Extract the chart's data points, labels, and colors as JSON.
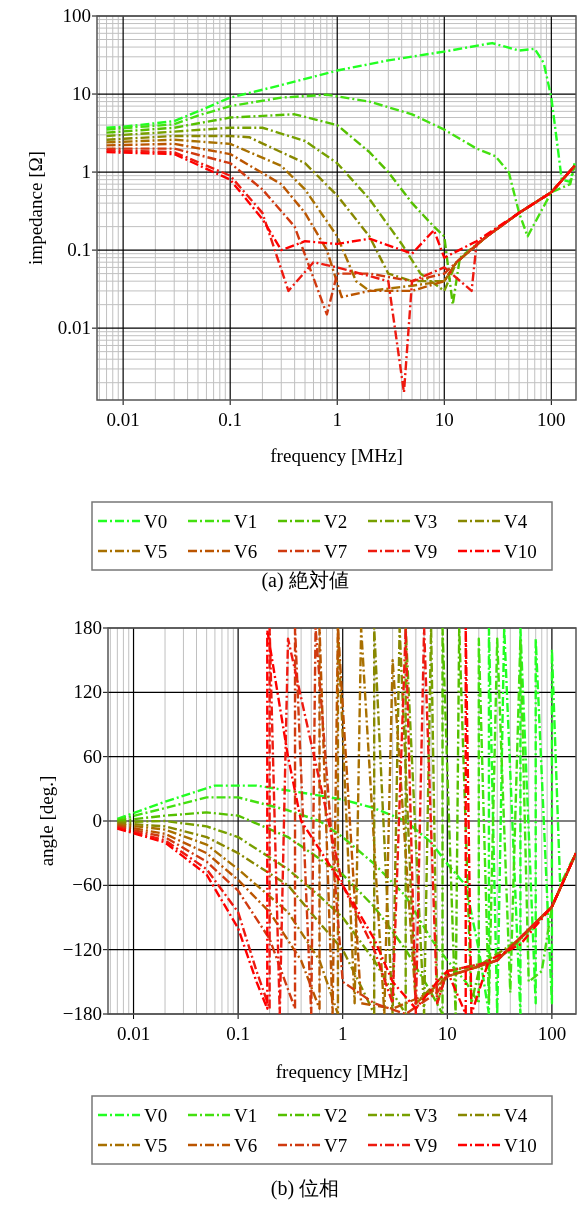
{
  "chart_data": [
    {
      "type": "line",
      "title": "(a)  絶対値",
      "xlabel": "frequency [MHz]",
      "ylabel": "impedance [Ω]",
      "log": "xy",
      "xlim": [
        0.0057,
        170
      ],
      "ylim": [
        0.0012,
        100
      ],
      "xticks": [
        0.01,
        0.1,
        1,
        10,
        100
      ],
      "yticks": [
        0.01,
        0.1,
        1,
        10,
        100
      ],
      "grid": true,
      "legend": "bottom",
      "line_style": "dashed",
      "marker": "none",
      "series": [
        {
          "name": "V0",
          "color": "#22ff22",
          "x": [
            0.007,
            0.01,
            0.03,
            0.05,
            0.1,
            0.3,
            1,
            3,
            10,
            28,
            50,
            70,
            85,
            100,
            115,
            125,
            150,
            165
          ],
          "values": [
            3.7,
            3.8,
            4.5,
            6,
            9,
            13,
            20,
            27,
            35,
            45,
            36,
            38,
            25,
            9,
            2,
            0.8,
            0.75,
            1.3
          ]
        },
        {
          "name": "V1",
          "color": "#44e010",
          "x": [
            0.007,
            0.03,
            0.05,
            0.1,
            0.3,
            0.8,
            2,
            5,
            10,
            20,
            30,
            40,
            50,
            60,
            100,
            150,
            165
          ],
          "values": [
            3.5,
            4.1,
            5.3,
            7,
            9,
            9.8,
            8,
            5.5,
            3.5,
            2,
            1.6,
            1,
            0.3,
            0.15,
            0.55,
            0.7,
            1.2
          ]
        },
        {
          "name": "V2",
          "color": "#55c000",
          "x": [
            0.007,
            0.03,
            0.1,
            0.4,
            1,
            2,
            3,
            5,
            8,
            10,
            12,
            14,
            25,
            50,
            100,
            165
          ],
          "values": [
            3.2,
            3.7,
            5,
            5.5,
            4,
            1.8,
            1,
            0.4,
            0.2,
            0.15,
            0.02,
            0.08,
            0.15,
            0.3,
            0.55,
            1.2
          ]
        },
        {
          "name": "V3",
          "color": "#77a000",
          "x": [
            0.007,
            0.03,
            0.1,
            0.2,
            0.5,
            1,
            2,
            4,
            6,
            10,
            13,
            25,
            50,
            100,
            165
          ],
          "values": [
            2.9,
            3.3,
            3.7,
            3.7,
            2.5,
            1.3,
            0.45,
            0.12,
            0.05,
            0.03,
            0.07,
            0.15,
            0.3,
            0.55,
            1.2
          ]
        },
        {
          "name": "V4",
          "color": "#888800",
          "x": [
            0.007,
            0.03,
            0.1,
            0.15,
            0.5,
            1,
            2,
            3,
            5,
            10,
            13,
            25,
            50,
            100,
            165
          ],
          "values": [
            2.6,
            2.9,
            2.9,
            2.8,
            1.3,
            0.5,
            0.15,
            0.05,
            0.04,
            0.04,
            0.07,
            0.15,
            0.3,
            0.55,
            1.2
          ]
        },
        {
          "name": "V5",
          "color": "#a87000",
          "x": [
            0.007,
            0.03,
            0.1,
            0.3,
            0.5,
            1,
            1.5,
            2,
            5,
            10,
            13,
            25,
            50,
            100,
            165
          ],
          "values": [
            2.4,
            2.6,
            2.3,
            1.2,
            0.6,
            0.15,
            0.04,
            0.03,
            0.035,
            0.04,
            0.07,
            0.15,
            0.3,
            0.55,
            1.2
          ]
        },
        {
          "name": "V6",
          "color": "#bb5500",
          "x": [
            0.007,
            0.03,
            0.1,
            0.3,
            0.5,
            0.8,
            1.1,
            2,
            5,
            10,
            13,
            25,
            50,
            100,
            165
          ],
          "values": [
            2.2,
            2.3,
            1.7,
            0.7,
            0.3,
            0.1,
            0.025,
            0.03,
            0.03,
            0.04,
            0.07,
            0.15,
            0.3,
            0.55,
            1.2
          ]
        },
        {
          "name": "V7",
          "color": "#d03a10",
          "x": [
            0.007,
            0.03,
            0.1,
            0.2,
            0.4,
            0.8,
            1,
            2,
            5,
            10,
            13,
            25,
            50,
            100,
            165
          ],
          "values": [
            2.0,
            2.0,
            1.3,
            0.6,
            0.2,
            0.015,
            0.05,
            0.05,
            0.04,
            0.05,
            0.07,
            0.15,
            0.3,
            0.55,
            1.2
          ]
        },
        {
          "name": "V9",
          "color": "#ee1a10",
          "x": [
            0.007,
            0.03,
            0.1,
            0.2,
            0.35,
            0.6,
            1,
            3,
            4.2,
            5,
            10,
            18,
            20,
            25,
            50,
            100,
            165
          ],
          "values": [
            1.9,
            1.8,
            0.9,
            0.3,
            0.03,
            0.07,
            0.06,
            0.04,
            0.0015,
            0.04,
            0.06,
            0.03,
            0.12,
            0.15,
            0.3,
            0.55,
            1.2
          ]
        },
        {
          "name": "V10",
          "color": "#ff0000",
          "x": [
            0.007,
            0.03,
            0.1,
            0.2,
            0.3,
            0.5,
            1,
            2,
            5,
            8,
            10,
            20,
            50,
            100,
            165
          ],
          "values": [
            1.8,
            1.7,
            0.8,
            0.25,
            0.1,
            0.13,
            0.12,
            0.14,
            0.09,
            0.18,
            0.08,
            0.13,
            0.3,
            0.55,
            1.2
          ]
        }
      ]
    },
    {
      "type": "line",
      "title": "(b)  位相",
      "xlabel": "frequency [MHz]",
      "ylabel": "angle [deg.]",
      "log": "x",
      "xlim": [
        0.0057,
        170
      ],
      "ylim": [
        -180,
        180
      ],
      "xticks": [
        0.01,
        0.1,
        1,
        10,
        100
      ],
      "yticks": [
        {
          "value": -180,
          "label": "−180"
        },
        {
          "value": -120,
          "label": "−120"
        },
        {
          "value": -60,
          "label": "−60"
        },
        0,
        60,
        120,
        180
      ],
      "grid": true,
      "legend": "bottom",
      "line_style": "dashed",
      "marker": "none",
      "series": [
        {
          "name": "V0",
          "color": "#22ff22",
          "x": [
            0.007,
            0.02,
            0.06,
            0.15,
            0.5,
            1,
            2,
            4,
            7,
            10,
            15,
            20,
            25,
            25,
            30,
            35,
            50,
            50,
            70,
            70,
            100,
            100,
            120,
            150,
            170
          ],
          "values": [
            2,
            18,
            33,
            33,
            25,
            20,
            12,
            0,
            -20,
            -40,
            -60,
            -120,
            -180,
            180,
            -180,
            180,
            -180,
            180,
            -170,
            170,
            -170,
            160,
            -60,
            -40,
            -30
          ]
        },
        {
          "name": "V1",
          "color": "#44e010",
          "x": [
            0.007,
            0.02,
            0.05,
            0.1,
            0.3,
            0.6,
            1,
            2,
            4,
            7,
            10,
            15,
            20,
            20,
            25,
            30,
            40,
            50,
            60,
            80,
            100,
            170
          ],
          "values": [
            1,
            12,
            22,
            22,
            10,
            0,
            -15,
            -40,
            -70,
            -110,
            -130,
            -150,
            -170,
            170,
            -170,
            170,
            -160,
            170,
            -150,
            -140,
            -80,
            -30
          ]
        },
        {
          "name": "V2",
          "color": "#55c000",
          "x": [
            0.007,
            0.02,
            0.05,
            0.1,
            0.3,
            1,
            2,
            4,
            7,
            9,
            9,
            12,
            13,
            17,
            20,
            40,
            100,
            170
          ],
          "values": [
            0,
            5,
            8,
            5,
            -15,
            -50,
            -80,
            -120,
            -160,
            -180,
            180,
            -180,
            180,
            -170,
            -140,
            -120,
            -80,
            -30
          ]
        },
        {
          "name": "V3",
          "color": "#77a000",
          "x": [
            0.007,
            0.02,
            0.05,
            0.1,
            0.3,
            0.6,
            1,
            2,
            3,
            4,
            4,
            6,
            7,
            8,
            10,
            20,
            50,
            100,
            170
          ],
          "values": [
            -1,
            0,
            -5,
            -15,
            -45,
            -70,
            -90,
            -130,
            -160,
            -180,
            180,
            -180,
            180,
            -170,
            -140,
            -135,
            -110,
            -80,
            -30
          ]
        },
        {
          "name": "V4",
          "color": "#888800",
          "x": [
            0.007,
            0.02,
            0.05,
            0.1,
            0.3,
            0.6,
            1,
            1.6,
            2,
            2,
            3,
            3.5,
            5,
            8,
            10,
            30,
            100,
            170
          ],
          "values": [
            -2,
            -5,
            -15,
            -30,
            -60,
            -95,
            -120,
            -160,
            -180,
            180,
            -180,
            180,
            -170,
            -150,
            -140,
            -130,
            -80,
            -30
          ]
        },
        {
          "name": "V5",
          "color": "#a87000",
          "x": [
            0.007,
            0.02,
            0.05,
            0.1,
            0.3,
            0.6,
            0.9,
            0.9,
            1.3,
            1.5,
            2.5,
            3,
            5,
            10,
            30,
            100,
            170
          ],
          "values": [
            -3,
            -8,
            -22,
            -45,
            -85,
            -130,
            -180,
            180,
            -170,
            180,
            -180,
            150,
            -170,
            -145,
            -130,
            -80,
            -30
          ]
        },
        {
          "name": "V6",
          "color": "#bb5500",
          "x": [
            0.007,
            0.02,
            0.05,
            0.1,
            0.2,
            0.4,
            0.6,
            0.6,
            0.8,
            0.9,
            1.5,
            3,
            7,
            10,
            30,
            100,
            170
          ],
          "values": [
            -4,
            -12,
            -30,
            -55,
            -85,
            -130,
            -175,
            180,
            -180,
            180,
            -170,
            -175,
            -160,
            -145,
            -130,
            -80,
            -30
          ]
        },
        {
          "name": "V7",
          "color": "#d03a10",
          "x": [
            0.007,
            0.02,
            0.05,
            0.1,
            0.2,
            0.35,
            0.35,
            0.5,
            0.55,
            1,
            2,
            4,
            8,
            10,
            30,
            100,
            170
          ],
          "values": [
            -5,
            -15,
            -38,
            -65,
            -110,
            -175,
            180,
            -180,
            180,
            -150,
            -170,
            -180,
            -160,
            -145,
            -130,
            -80,
            -30
          ]
        },
        {
          "name": "V9",
          "color": "#ee1a10",
          "x": [
            0.007,
            0.02,
            0.05,
            0.1,
            0.15,
            0.2,
            0.2,
            0.25,
            0.3,
            1,
            2,
            3,
            4,
            5,
            6,
            8,
            10,
            30,
            100,
            170
          ],
          "values": [
            -6,
            -18,
            -45,
            -85,
            -140,
            -175,
            180,
            -180,
            170,
            -60,
            -120,
            -170,
            180,
            -180,
            180,
            -170,
            -140,
            -130,
            -80,
            -30
          ]
        },
        {
          "name": "V10",
          "color": "#ff0000",
          "x": [
            0.007,
            0.02,
            0.05,
            0.1,
            0.15,
            0.19,
            0.19,
            0.3,
            0.4,
            1,
            2,
            3,
            5,
            8,
            10,
            15,
            15,
            17,
            25,
            50,
            100,
            170
          ],
          "values": [
            -7,
            -20,
            -50,
            -100,
            -150,
            -175,
            178,
            60,
            0,
            -60,
            -110,
            -150,
            -175,
            -150,
            -140,
            -180,
            180,
            -180,
            -130,
            -115,
            -80,
            -30
          ]
        }
      ]
    }
  ]
}
